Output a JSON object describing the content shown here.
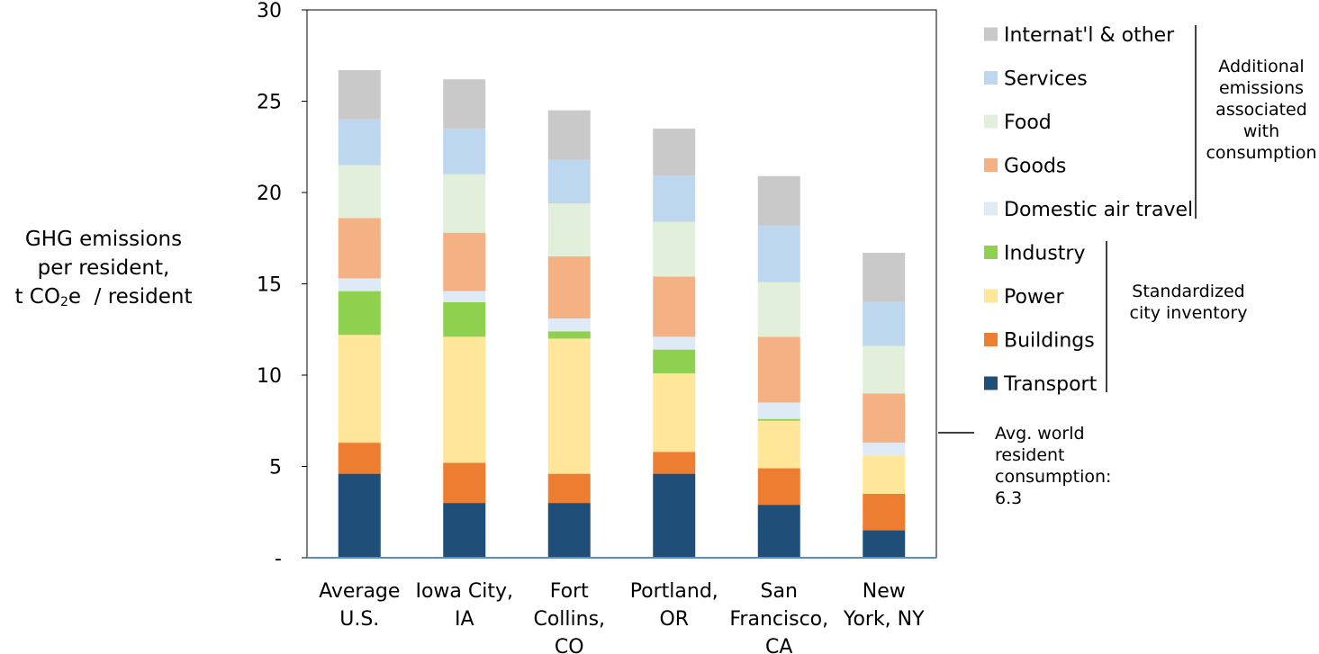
{
  "chart_data": {
    "type": "bar",
    "stacked": true,
    "ylabel_lines": [
      "GHG emissions",
      "per resident,"
    ],
    "ylabel_unit": {
      "pre": "t CO",
      "sub": "2",
      "post": "e  / resident"
    },
    "ylim": [
      0,
      30
    ],
    "yticks": [
      "-",
      "5",
      "10",
      "15",
      "20",
      "25",
      "30"
    ],
    "ytick_values": [
      0,
      5,
      10,
      15,
      20,
      25,
      30
    ],
    "categories": [
      [
        "Average",
        "U.S."
      ],
      [
        "Iowa City,",
        "IA"
      ],
      [
        "Fort",
        "Collins,",
        "CO"
      ],
      [
        "Portland,",
        "OR"
      ],
      [
        "San",
        "Francisco,",
        "CA"
      ],
      [
        "New",
        "York, NY"
      ]
    ],
    "series": [
      {
        "name": "Transport",
        "color": "#1f4e79",
        "values": [
          4.6,
          3.0,
          3.0,
          4.6,
          2.9,
          1.5
        ]
      },
      {
        "name": "Buildings",
        "color": "#ed7d31",
        "values": [
          1.7,
          2.2,
          1.6,
          1.2,
          2.0,
          2.0
        ]
      },
      {
        "name": "Power",
        "color": "#ffe699",
        "values": [
          5.9,
          6.9,
          7.4,
          4.3,
          2.6,
          2.1
        ]
      },
      {
        "name": "Industry",
        "color": "#8fd14f",
        "values": [
          2.4,
          1.9,
          0.4,
          1.3,
          0.1,
          0.0
        ]
      },
      {
        "name": "Domestic air travel",
        "color": "#deebf7",
        "values": [
          0.7,
          0.6,
          0.7,
          0.7,
          0.9,
          0.7
        ]
      },
      {
        "name": "Goods",
        "color": "#f4b183",
        "values": [
          3.3,
          3.2,
          3.4,
          3.3,
          3.6,
          2.7
        ]
      },
      {
        "name": "Food",
        "color": "#e2efda",
        "values": [
          2.9,
          3.2,
          2.9,
          3.0,
          3.0,
          2.6
        ]
      },
      {
        "name": "Services",
        "color": "#bdd7ee",
        "values": [
          2.5,
          2.5,
          2.4,
          2.5,
          3.1,
          2.4
        ]
      },
      {
        "name": "Internat'l & other",
        "color": "#c9c9c9",
        "values": [
          2.7,
          2.7,
          2.7,
          2.6,
          2.7,
          2.7
        ]
      }
    ],
    "legend_order": [
      "Internat'l & other",
      "Services",
      "Food",
      "Goods",
      "Domestic air travel",
      "Industry",
      "Power",
      "Buildings",
      "Transport"
    ],
    "legend_groups": [
      {
        "label_lines": [
          "Additional",
          "emissions",
          "associated",
          "with",
          "consumption"
        ],
        "members": [
          "Internat'l & other",
          "Services",
          "Food",
          "Goods",
          "Domestic air travel"
        ]
      },
      {
        "label_lines": [
          "Standardized",
          "city inventory"
        ],
        "members": [
          "Industry",
          "Power",
          "Buildings",
          "Transport"
        ]
      }
    ],
    "reference_line": {
      "value": 6.3,
      "label_lines": [
        "Avg. world",
        "resident",
        "consumption:",
        "6.3"
      ]
    },
    "axis_color": "#5b8dbf"
  }
}
